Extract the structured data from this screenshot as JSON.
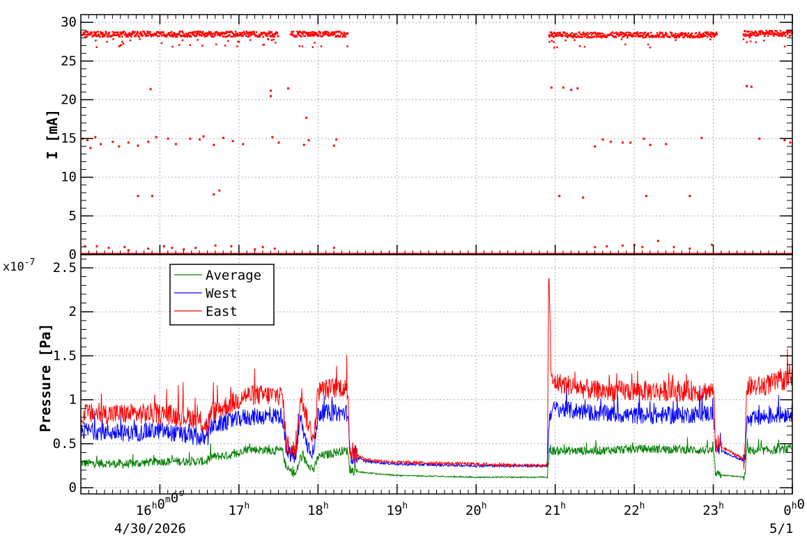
{
  "chart_data": [
    {
      "type": "scatter",
      "ylabel": "I [mA]",
      "ylim": [
        0,
        31
      ],
      "yticks": [
        "0",
        "5",
        "10",
        "15",
        "20",
        "25",
        "30"
      ],
      "grid": true,
      "colors": {
        "points": "#ff0000"
      },
      "segments": [
        {
          "t_start": 15.0,
          "t_end": 17.5,
          "level": 28.5
        },
        {
          "t_start": 17.65,
          "t_end": 18.38,
          "level": 28.5
        },
        {
          "t_start": 20.92,
          "t_end": 23.05,
          "level": 28.4
        },
        {
          "t_start": 23.38,
          "t_end": 24.0,
          "level": 28.6
        }
      ],
      "scattered_points": [
        {
          "t": 15.02,
          "I": 15.0
        },
        {
          "t": 15.08,
          "I": 14.8
        },
        {
          "t": 15.12,
          "I": 13.8
        },
        {
          "t": 15.18,
          "I": 15.2
        },
        {
          "t": 15.25,
          "I": 14.3
        },
        {
          "t": 15.4,
          "I": 14.6
        },
        {
          "t": 15.48,
          "I": 14.0
        },
        {
          "t": 15.6,
          "I": 14.5
        },
        {
          "t": 15.72,
          "I": 14.1
        },
        {
          "t": 15.85,
          "I": 14.6
        },
        {
          "t": 15.95,
          "I": 15.2
        },
        {
          "t": 16.1,
          "I": 15.0
        },
        {
          "t": 16.2,
          "I": 14.3
        },
        {
          "t": 16.38,
          "I": 15.0
        },
        {
          "t": 16.5,
          "I": 14.9
        },
        {
          "t": 16.55,
          "I": 15.3
        },
        {
          "t": 16.68,
          "I": 14.2
        },
        {
          "t": 16.8,
          "I": 15.1
        },
        {
          "t": 16.92,
          "I": 14.7
        },
        {
          "t": 17.05,
          "I": 14.3
        },
        {
          "t": 17.42,
          "I": 15.2
        },
        {
          "t": 17.5,
          "I": 14.5
        },
        {
          "t": 17.82,
          "I": 14.2
        },
        {
          "t": 17.88,
          "I": 14.8
        },
        {
          "t": 18.2,
          "I": 14.1
        },
        {
          "t": 18.23,
          "I": 14.9
        },
        {
          "t": 21.5,
          "I": 14.0
        },
        {
          "t": 21.6,
          "I": 14.9
        },
        {
          "t": 21.7,
          "I": 14.6
        },
        {
          "t": 21.85,
          "I": 14.5
        },
        {
          "t": 21.95,
          "I": 14.5
        },
        {
          "t": 22.12,
          "I": 15.0
        },
        {
          "t": 22.2,
          "I": 14.2
        },
        {
          "t": 22.4,
          "I": 14.3
        },
        {
          "t": 22.85,
          "I": 15.1
        },
        {
          "t": 23.58,
          "I": 15.0
        },
        {
          "t": 23.9,
          "I": 14.8
        },
        {
          "t": 23.97,
          "I": 14.5
        },
        {
          "t": 15.88,
          "I": 21.4
        },
        {
          "t": 17.4,
          "I": 21.2
        },
        {
          "t": 17.4,
          "I": 20.5
        },
        {
          "t": 17.62,
          "I": 21.5
        },
        {
          "t": 17.85,
          "I": 17.7
        },
        {
          "t": 20.95,
          "I": 21.6
        },
        {
          "t": 21.1,
          "I": 21.6
        },
        {
          "t": 21.2,
          "I": 21.3
        },
        {
          "t": 21.28,
          "I": 21.5
        },
        {
          "t": 23.42,
          "I": 21.8
        },
        {
          "t": 23.48,
          "I": 21.7
        },
        {
          "t": 15.72,
          "I": 7.6
        },
        {
          "t": 15.9,
          "I": 7.6
        },
        {
          "t": 16.68,
          "I": 7.8
        },
        {
          "t": 16.75,
          "I": 8.3
        },
        {
          "t": 21.05,
          "I": 7.6
        },
        {
          "t": 21.35,
          "I": 7.4
        },
        {
          "t": 22.15,
          "I": 7.6
        },
        {
          "t": 22.7,
          "I": 7.6
        },
        {
          "t": 15.05,
          "I": 1.1
        },
        {
          "t": 15.2,
          "I": 1.1
        },
        {
          "t": 15.35,
          "I": 0.9
        },
        {
          "t": 15.55,
          "I": 1.0
        },
        {
          "t": 15.6,
          "I": 0.6
        },
        {
          "t": 15.85,
          "I": 0.8
        },
        {
          "t": 16.05,
          "I": 1.1
        },
        {
          "t": 16.15,
          "I": 0.9
        },
        {
          "t": 16.3,
          "I": 0.7
        },
        {
          "t": 16.45,
          "I": 0.9
        },
        {
          "t": 16.7,
          "I": 1.2
        },
        {
          "t": 16.9,
          "I": 1.1
        },
        {
          "t": 17.2,
          "I": 0.7
        },
        {
          "t": 17.3,
          "I": 1.0
        },
        {
          "t": 17.45,
          "I": 0.8
        },
        {
          "t": 18.2,
          "I": 0.9
        },
        {
          "t": 21.5,
          "I": 1.0
        },
        {
          "t": 21.65,
          "I": 1.1
        },
        {
          "t": 21.85,
          "I": 1.2
        },
        {
          "t": 22.0,
          "I": 1.3
        },
        {
          "t": 22.1,
          "I": 1.0
        },
        {
          "t": 22.3,
          "I": 1.8
        },
        {
          "t": 22.5,
          "I": 1.0
        },
        {
          "t": 22.7,
          "I": 0.8
        },
        {
          "t": 22.98,
          "I": 1.3
        }
      ]
    },
    {
      "type": "line",
      "ylabel": "Pressure [Pa]",
      "multiplier": "x10",
      "multiplier_exp": "-7",
      "ylim": [
        -0.07,
        2.65
      ],
      "yticks": [
        "0",
        "0.5",
        "1",
        "1.5",
        "2",
        "2.5"
      ],
      "xlabel": "",
      "xlim": [
        15.0,
        24.0
      ],
      "xticks": [
        {
          "t": 16,
          "label": "16",
          "sup": "h",
          "extra": "0",
          "extra_sup": "m",
          "extra2": "0",
          "extra2_sup": "s"
        },
        {
          "t": 17,
          "label": "17",
          "sup": "h"
        },
        {
          "t": 18,
          "label": "18",
          "sup": "h"
        },
        {
          "t": 19,
          "label": "19",
          "sup": "h"
        },
        {
          "t": 20,
          "label": "20",
          "sup": "h"
        },
        {
          "t": 21,
          "label": "21",
          "sup": "h"
        },
        {
          "t": 22,
          "label": "22",
          "sup": "h"
        },
        {
          "t": 23,
          "label": "23",
          "sup": "h"
        },
        {
          "t": 24,
          "label": "0",
          "sup": "h",
          "extra": "0"
        }
      ],
      "date_start": "4/30/2026",
      "date_end": "5/1",
      "grid": true,
      "legend_position": "top-left",
      "series": [
        {
          "name": "Average",
          "color": "#008000",
          "knots": [
            [
              15.0,
              0.28
            ],
            [
              15.6,
              0.27
            ],
            [
              16.0,
              0.3
            ],
            [
              16.6,
              0.3
            ],
            [
              16.65,
              0.35
            ],
            [
              17.0,
              0.38
            ],
            [
              17.05,
              0.44
            ],
            [
              17.55,
              0.42
            ],
            [
              17.6,
              0.22
            ],
            [
              17.72,
              0.15
            ],
            [
              17.78,
              0.35
            ],
            [
              17.85,
              0.3
            ],
            [
              17.95,
              0.2
            ],
            [
              18.0,
              0.35
            ],
            [
              18.3,
              0.42
            ],
            [
              18.38,
              0.42
            ],
            [
              18.4,
              0.2
            ],
            [
              18.6,
              0.17
            ],
            [
              19.0,
              0.14
            ],
            [
              20.0,
              0.12
            ],
            [
              20.9,
              0.12
            ],
            [
              20.93,
              0.42
            ],
            [
              21.0,
              0.42
            ],
            [
              21.5,
              0.42
            ],
            [
              22.0,
              0.44
            ],
            [
              22.5,
              0.44
            ],
            [
              23.0,
              0.42
            ],
            [
              23.03,
              0.15
            ],
            [
              23.4,
              0.12
            ],
            [
              23.42,
              0.42
            ],
            [
              23.6,
              0.42
            ],
            [
              24.0,
              0.44
            ]
          ],
          "noise": 0.05
        },
        {
          "name": "West",
          "color": "#0000ff",
          "knots": [
            [
              15.0,
              0.65
            ],
            [
              15.6,
              0.62
            ],
            [
              16.0,
              0.65
            ],
            [
              16.6,
              0.55
            ],
            [
              16.65,
              0.7
            ],
            [
              17.0,
              0.78
            ],
            [
              17.05,
              0.8
            ],
            [
              17.55,
              0.82
            ],
            [
              17.6,
              0.4
            ],
            [
              17.72,
              0.35
            ],
            [
              17.78,
              0.8
            ],
            [
              17.85,
              0.5
            ],
            [
              17.95,
              0.4
            ],
            [
              18.0,
              0.85
            ],
            [
              18.3,
              0.85
            ],
            [
              18.38,
              0.85
            ],
            [
              18.4,
              0.38
            ],
            [
              18.6,
              0.3
            ],
            [
              19.0,
              0.27
            ],
            [
              20.0,
              0.25
            ],
            [
              20.9,
              0.25
            ],
            [
              20.93,
              0.85
            ],
            [
              21.0,
              0.9
            ],
            [
              21.5,
              0.85
            ],
            [
              22.0,
              0.82
            ],
            [
              22.5,
              0.82
            ],
            [
              23.0,
              0.85
            ],
            [
              23.03,
              0.45
            ],
            [
              23.4,
              0.3
            ],
            [
              23.42,
              0.75
            ],
            [
              23.6,
              0.8
            ],
            [
              24.0,
              0.85
            ]
          ],
          "noise": 0.1
        },
        {
          "name": "East",
          "color": "#ff0000",
          "knots": [
            [
              15.0,
              0.84
            ],
            [
              15.6,
              0.84
            ],
            [
              16.0,
              0.84
            ],
            [
              16.4,
              0.8
            ],
            [
              16.6,
              0.7
            ],
            [
              16.65,
              0.85
            ],
            [
              17.0,
              1.0
            ],
            [
              17.05,
              1.05
            ],
            [
              17.55,
              1.05
            ],
            [
              17.6,
              0.5
            ],
            [
              17.72,
              0.4
            ],
            [
              17.78,
              1.1
            ],
            [
              17.85,
              0.8
            ],
            [
              17.95,
              0.55
            ],
            [
              18.0,
              1.1
            ],
            [
              18.3,
              1.15
            ],
            [
              18.38,
              1.1
            ],
            [
              18.4,
              0.42
            ],
            [
              18.6,
              0.32
            ],
            [
              19.0,
              0.29
            ],
            [
              20.0,
              0.27
            ],
            [
              20.85,
              0.25
            ],
            [
              20.9,
              0.25
            ],
            [
              20.92,
              2.58
            ],
            [
              20.95,
              1.2
            ],
            [
              21.0,
              1.2
            ],
            [
              21.5,
              1.1
            ],
            [
              22.0,
              1.1
            ],
            [
              22.5,
              1.1
            ],
            [
              23.0,
              1.1
            ],
            [
              23.03,
              0.5
            ],
            [
              23.4,
              0.32
            ],
            [
              23.42,
              1.15
            ],
            [
              23.6,
              1.15
            ],
            [
              24.0,
              1.25
            ]
          ],
          "noise": 0.12
        }
      ]
    }
  ]
}
